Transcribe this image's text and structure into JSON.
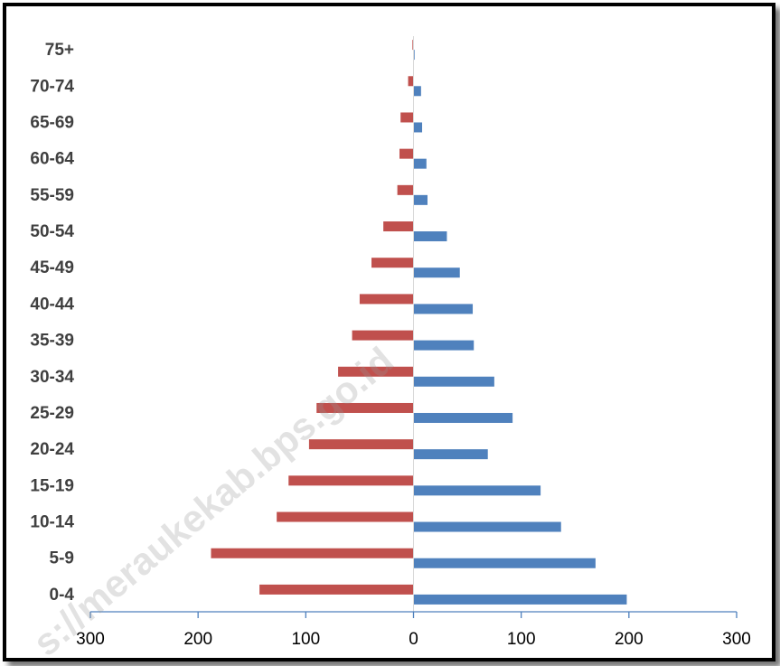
{
  "chart_data": {
    "type": "bar",
    "orientation": "horizontal",
    "categories": [
      "0-4",
      "5-9",
      "10-14",
      "15-19",
      "20-24",
      "25-29",
      "30-34",
      "35-39",
      "40-44",
      "45-49",
      "50-54",
      "55-59",
      "60-64",
      "65-69",
      "70-74",
      "75+"
    ],
    "series": [
      {
        "values": [
          -143,
          -188,
          -127,
          -116,
          -97,
          -90,
          -70,
          -57,
          -50,
          -39,
          -28,
          -15,
          -13,
          -12,
          -5,
          -1
        ]
      },
      {
        "values": [
          198,
          169,
          137,
          118,
          69,
          92,
          75,
          56,
          55,
          43,
          31,
          13,
          12,
          8,
          7,
          1
        ]
      }
    ],
    "xlim": [
      -300,
      300
    ],
    "xticks": [
      -300,
      -200,
      -100,
      0,
      100,
      200,
      300
    ],
    "xtick_labels": [
      "300",
      "200",
      "100",
      "0",
      "100",
      "200",
      "300"
    ],
    "colors": {
      "left": "#c0504d",
      "right": "#4f81bd",
      "axis": "#4f81bd"
    },
    "title": "",
    "xlabel": "",
    "ylabel": "",
    "grid": false,
    "watermark": "s://meraukekab.bps.go.id"
  }
}
